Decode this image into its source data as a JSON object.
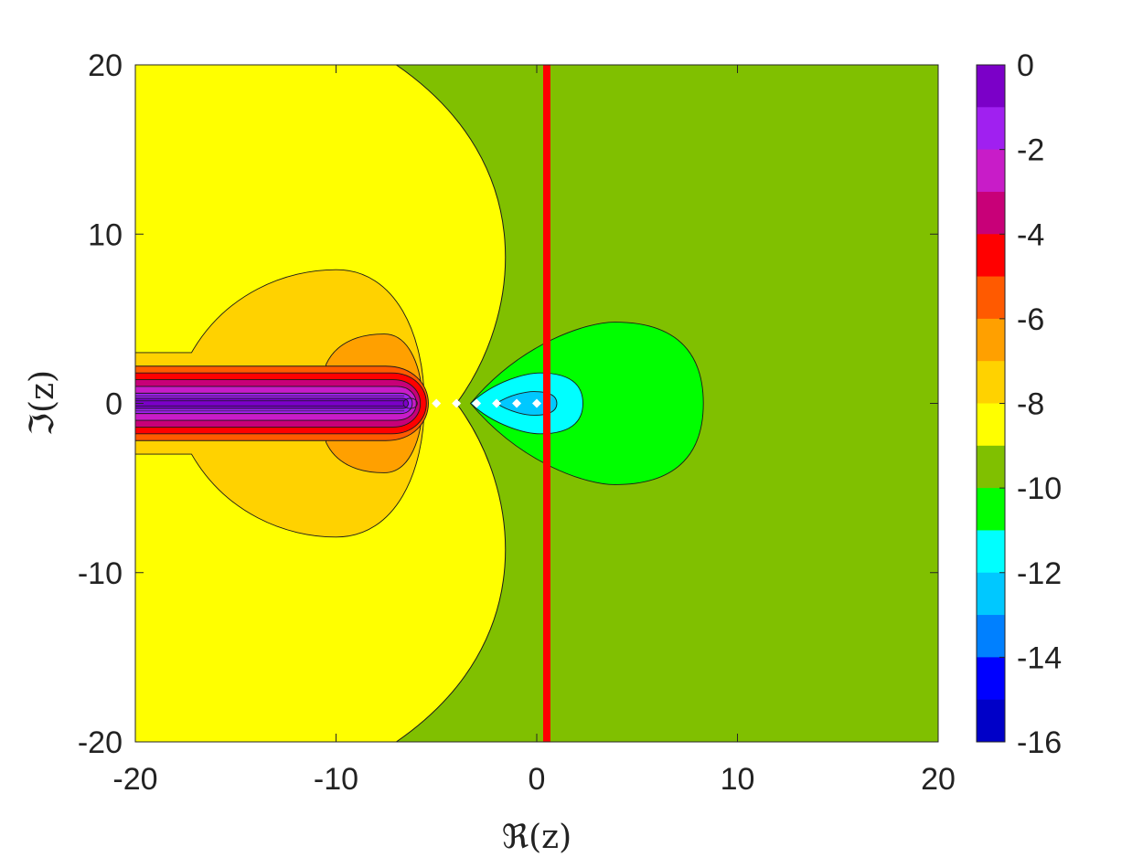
{
  "chart_data": {
    "type": "heatmap",
    "subtype": "filled-contour",
    "title": "",
    "xlabel": "ℜ(z)",
    "ylabel": "ℑ(z)",
    "xlim": [
      -20,
      20
    ],
    "ylim": [
      -20,
      20
    ],
    "x_ticks": [
      -20,
      -10,
      0,
      10,
      20
    ],
    "y_ticks": [
      -20,
      -10,
      0,
      10,
      20
    ],
    "x_tick_labels": [
      "-20",
      "-10",
      "0",
      "10",
      "20"
    ],
    "y_tick_labels": [
      "-20",
      "-10",
      "0",
      "10",
      "20"
    ],
    "grid": false,
    "colorbar": {
      "placement": "right",
      "range": [
        -16,
        0
      ],
      "ticks": [
        0,
        -2,
        -4,
        -6,
        -8,
        -10,
        -12,
        -14,
        -16
      ],
      "tick_labels": [
        "0",
        "-2",
        "-4",
        "-6",
        "-8",
        "-10",
        "-12",
        "-14",
        "-16"
      ],
      "levels": [
        {
          "from": -1,
          "to": 0,
          "color": "#7b00c8"
        },
        {
          "from": -2,
          "to": -1,
          "color": "#a020f0"
        },
        {
          "from": -3,
          "to": -2,
          "color": "#c81cc8"
        },
        {
          "from": -4,
          "to": -3,
          "color": "#c80078"
        },
        {
          "from": -5,
          "to": -4,
          "color": "#ff0000"
        },
        {
          "from": -6,
          "to": -5,
          "color": "#ff5a00"
        },
        {
          "from": -7,
          "to": -6,
          "color": "#ffa000"
        },
        {
          "from": -8,
          "to": -7,
          "color": "#ffd200"
        },
        {
          "from": -9,
          "to": -8,
          "color": "#ffff00"
        },
        {
          "from": -10,
          "to": -9,
          "color": "#80c000"
        },
        {
          "from": -11,
          "to": -10,
          "color": "#00ff00"
        },
        {
          "from": -12,
          "to": -11,
          "color": "#00ffff"
        },
        {
          "from": -13,
          "to": -12,
          "color": "#00c8ff"
        },
        {
          "from": -14,
          "to": -13,
          "color": "#0080ff"
        },
        {
          "from": -15,
          "to": -14,
          "color": "#0000ff"
        },
        {
          "from": -16,
          "to": -15,
          "color": "#0000c8"
        }
      ]
    },
    "regions": [
      {
        "level": -10,
        "color": "#80c000",
        "note": "background (right of boundary)"
      },
      {
        "level": -9,
        "color": "#ffff00",
        "x_boundary_at_y0": -4,
        "x_boundary_at_edges": -7,
        "bulge_x": -2
      },
      {
        "level": -8,
        "color": "#ffd200",
        "x_extent": [
          -20,
          -5.6
        ],
        "y_half_height": 7.9
      },
      {
        "level": -7,
        "color": "#ffa000",
        "x_extent": [
          -10.5,
          -5.7
        ],
        "y_half_height": 4.1
      },
      {
        "level": -6,
        "color": "#ff5a00",
        "x_extent": [
          -20,
          -5.4
        ],
        "y_half_height": 2.2
      },
      {
        "level": -5,
        "color": "#ff0000",
        "x_extent": [
          -20,
          -5.5
        ],
        "y_half_height": 1.8
      },
      {
        "level": -4,
        "color": "#c80078",
        "x_extent": [
          -20,
          -5.8
        ],
        "y_half_height": 1.4
      },
      {
        "level": -3,
        "color": "#c81cc8",
        "x_extent": [
          -20,
          -6.0
        ],
        "y_half_height": 1.0
      },
      {
        "level": -2,
        "color": "#a020f0",
        "x_extent": [
          -20,
          -6.2
        ],
        "y_half_height": 0.6
      },
      {
        "level": -1,
        "color": "#7b00c8",
        "x_extent": [
          -20,
          -6.4
        ],
        "y_half_height": 0.3
      },
      {
        "level": -11,
        "color": "#00ff00",
        "x_extent": [
          -3.3,
          8.3
        ],
        "y_half_height": 4.8
      },
      {
        "level": -12,
        "color": "#00ffff",
        "x_extent": [
          -3.3,
          2.3
        ],
        "y_half_height": 1.8
      },
      {
        "level": -13,
        "color": "#00c8ff",
        "x_extent": [
          -2.0,
          1.0
        ],
        "y_half_height": 0.7
      }
    ],
    "reference_line": {
      "orientation": "vertical",
      "x": 0.5,
      "color": "#ff0000"
    },
    "markers": {
      "color": "#ffffff",
      "shape": "diamond",
      "points": [
        {
          "x": -5.0,
          "y": 0
        },
        {
          "x": -4.0,
          "y": 0
        },
        {
          "x": -3.0,
          "y": 0
        },
        {
          "x": -2.0,
          "y": 0
        },
        {
          "x": -1.0,
          "y": 0
        },
        {
          "x": 0.0,
          "y": 0
        }
      ]
    }
  }
}
